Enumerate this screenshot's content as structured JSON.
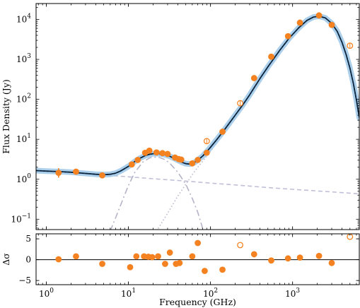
{
  "chart_data": [
    {
      "type": "line",
      "panel": "main",
      "ylabel": "Flux Density (Jy)",
      "xscale": "log",
      "yscale": "log",
      "xlim": [
        0.75,
        6500
      ],
      "ylim": [
        0.055,
        25000
      ],
      "y_ticks": [
        {
          "value": 0.1,
          "base": "10",
          "exp": "−1"
        },
        {
          "value": 1,
          "base": "10",
          "exp": "0"
        },
        {
          "value": 10,
          "base": "10",
          "exp": "1"
        },
        {
          "value": 100,
          "base": "10",
          "exp": "2"
        },
        {
          "value": 1000,
          "base": "10",
          "exp": "3"
        },
        {
          "value": 10000,
          "base": "10",
          "exp": "4"
        }
      ],
      "series": [
        {
          "kind": "model",
          "style": "solid",
          "color": "#0c2c4a",
          "band_color": "#9cc7e8",
          "x": [
            0.75,
            1,
            1.5,
            2,
            3,
            4,
            5,
            6,
            7,
            8,
            10,
            12,
            14,
            16,
            18,
            20,
            22,
            25,
            28,
            32,
            36,
            40,
            45,
            50,
            55,
            60,
            65,
            70,
            80,
            90,
            100,
            120,
            150,
            200,
            250,
            300,
            400,
            500,
            700,
            900,
            1200,
            1500,
            1800,
            2100,
            2500,
            3000,
            3500,
            4000,
            4500,
            5000,
            5500,
            6000,
            6500
          ],
          "y": [
            1.65,
            1.6,
            1.55,
            1.5,
            1.4,
            1.33,
            1.3,
            1.33,
            1.42,
            1.6,
            2.1,
            2.8,
            3.4,
            3.9,
            4.2,
            4.35,
            4.4,
            4.3,
            4.1,
            3.75,
            3.35,
            3.0,
            2.65,
            2.45,
            2.4,
            2.45,
            2.7,
            3.0,
            3.8,
            4.9,
            6.3,
            10,
            18,
            40,
            75,
            130,
            330,
            650,
            1700,
            3300,
            6300,
            9500,
            11500,
            12000,
            11000,
            8000,
            5000,
            2700,
            1300,
            600,
            250,
            95,
            35
          ]
        },
        {
          "kind": "component",
          "style": "dashed",
          "color": "#c0c0d8",
          "x": [
            0.75,
            1,
            2,
            5,
            10,
            20,
            50,
            100,
            200,
            500,
            1000,
            2000,
            5000,
            6500
          ],
          "y": [
            1.65,
            1.58,
            1.45,
            1.28,
            1.15,
            1.03,
            0.9,
            0.8,
            0.72,
            0.62,
            0.56,
            0.51,
            0.45,
            0.43
          ]
        },
        {
          "kind": "component",
          "style": "dashdot",
          "color": "#b4b4c8",
          "x": [
            6,
            7,
            8,
            10,
            12,
            15,
            18,
            20,
            24,
            28,
            32,
            40,
            50,
            60,
            70,
            80
          ],
          "y": [
            0.05,
            0.11,
            0.22,
            0.7,
            1.5,
            2.7,
            3.4,
            3.6,
            3.5,
            3.1,
            2.5,
            1.5,
            0.75,
            0.33,
            0.15,
            0.06
          ]
        },
        {
          "kind": "component",
          "style": "dotted",
          "color": "#b8b8cc",
          "x": [
            22,
            30,
            40,
            50,
            60,
            70,
            80,
            90,
            100,
            120,
            150
          ],
          "y": [
            0.05,
            0.14,
            0.38,
            0.75,
            1.3,
            2.0,
            2.8,
            3.8,
            5,
            8.5,
            15
          ]
        }
      ],
      "points_filled": {
        "color": "#f58221",
        "x": [
          1.41,
          2.3,
          4.8,
          11,
          13,
          16,
          18,
          22,
          26,
          30,
          37,
          41,
          44,
          60,
          70,
          90,
          140,
          340,
          550,
          880,
          1230,
          2100,
          3000
        ],
        "y": [
          1.45,
          1.55,
          1.25,
          2.35,
          3.05,
          4.6,
          5.2,
          4.7,
          4.5,
          4.3,
          3.5,
          3.2,
          3.1,
          2.5,
          3.05,
          4.6,
          15.5,
          340,
          1170,
          3800,
          8300,
          12600,
          7300
        ]
      },
      "points_open": {
        "color": "#f58221",
        "x": [
          90,
          230,
          5000
        ],
        "y": [
          9,
          80,
          2200
        ]
      }
    },
    {
      "type": "scatter",
      "panel": "residuals",
      "xlabel": "Frequency (GHz)",
      "ylabel": "Δσ",
      "xscale": "log",
      "xlim": [
        0.75,
        6500
      ],
      "ylim": [
        -6,
        6.2
      ],
      "y_ticks": [
        "5",
        "0",
        "−5"
      ],
      "y_tick_values": [
        5,
        0,
        -5
      ],
      "x_ticks": [
        {
          "value": 1,
          "base": "10",
          "exp": "0"
        },
        {
          "value": 10,
          "base": "10",
          "exp": "1"
        },
        {
          "value": 100,
          "base": "10",
          "exp": "2"
        },
        {
          "value": 1000,
          "base": "10",
          "exp": "3"
        }
      ],
      "points_filled": {
        "x": [
          1.41,
          2.3,
          4.8,
          10.5,
          12.5,
          15.5,
          17.5,
          19.5,
          23,
          28,
          32,
          38,
          42,
          60,
          70,
          85,
          140,
          340,
          550,
          880,
          1230,
          2100,
          3000
        ],
        "y": [
          0.1,
          0.8,
          -1.0,
          -1.8,
          0.8,
          0.8,
          0.7,
          0.6,
          0.8,
          -1.0,
          1.7,
          -1.0,
          -0.8,
          0.8,
          4.0,
          -2.7,
          -2.4,
          1.3,
          -0.2,
          0.3,
          0.5,
          0.9,
          -0.8
        ]
      },
      "points_open": {
        "x": [
          230,
          5000
        ],
        "y": [
          3.5,
          5.5
        ]
      }
    }
  ]
}
